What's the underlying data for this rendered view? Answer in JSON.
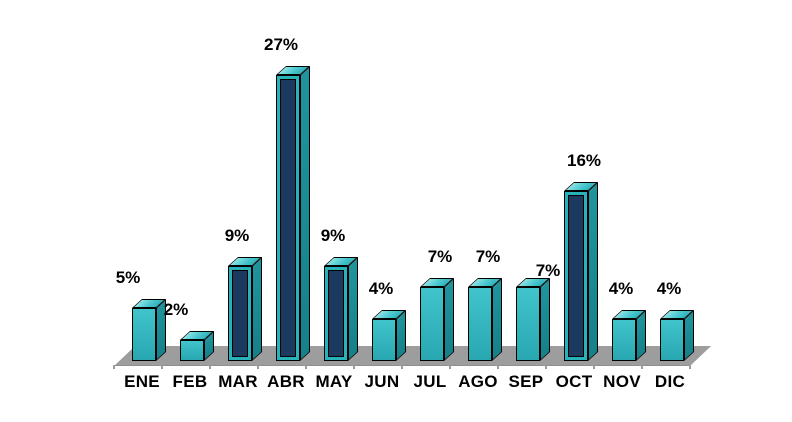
{
  "chart_data": {
    "type": "bar",
    "style": "3d-column",
    "title": "",
    "xlabel": "",
    "ylabel": "",
    "categories": [
      "ENE",
      "FEB",
      "MAR",
      "ABR",
      "MAY",
      "JUN",
      "JUL",
      "AGO",
      "SEP",
      "OCT",
      "NOV",
      "DIC"
    ],
    "values": [
      5,
      2,
      9,
      27,
      9,
      4,
      7,
      7,
      7,
      16,
      4,
      4
    ],
    "value_labels": [
      "5%",
      "2%",
      "9%",
      "27%",
      "9%",
      "4%",
      "7%",
      "7%",
      "7%",
      "16%",
      "4%",
      "4%"
    ],
    "highlighted": [
      false,
      false,
      true,
      true,
      true,
      false,
      false,
      false,
      false,
      true,
      false,
      false
    ],
    "unit": "percent",
    "ylim": [
      0,
      28
    ],
    "grid": false,
    "legend": false,
    "y_axis_visible": false,
    "colors": {
      "bar_front_light": "#41c4cc",
      "bar_front": "#28a7b1",
      "bar_side_light": "#1f949c",
      "bar_side": "#15818a",
      "bar_top_light": "#8ce4e7",
      "bar_top_mid": "#4cc8ce",
      "bar_top_dark": "#2fb3bc",
      "highlight_front": "#1c3a60",
      "highlight_frame": "#2ab2bb",
      "outline": "#000000",
      "floor": "#9d9d9d",
      "floor_edge": "#8f8f8f",
      "text": "#000000",
      "background": "#ffffff"
    }
  }
}
